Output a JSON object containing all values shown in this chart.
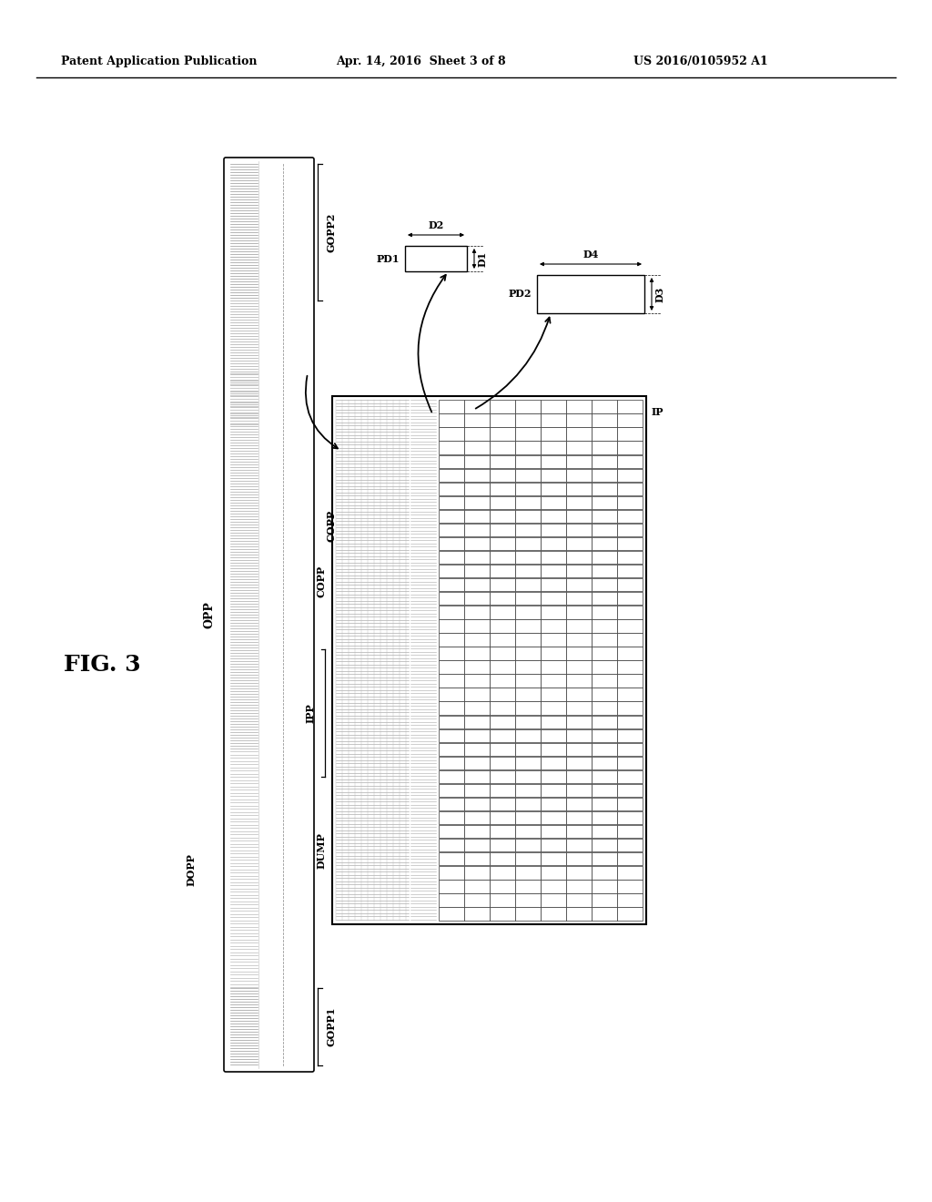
{
  "header_left": "Patent Application Publication",
  "header_mid": "Apr. 14, 2016  Sheet 3 of 8",
  "header_right": "US 2016/0105952 A1",
  "fig_label": "FIG. 3",
  "background": "#ffffff",
  "opp_label": "OPP",
  "gopp1_label": "GOPP1",
  "gopp2_label": "GOPP2",
  "copp_label_left": "COPP",
  "dopp_label": "DOPP",
  "copp_label_panel": "COPP",
  "ipp_label": "IPP",
  "dump_label": "DUMP",
  "ip_label": "IP",
  "pd1_label": "PD1",
  "pd2_label": "PD2",
  "d1_label": "D1",
  "d2_label": "D2",
  "d3_label": "D3",
  "d4_label": "D4"
}
